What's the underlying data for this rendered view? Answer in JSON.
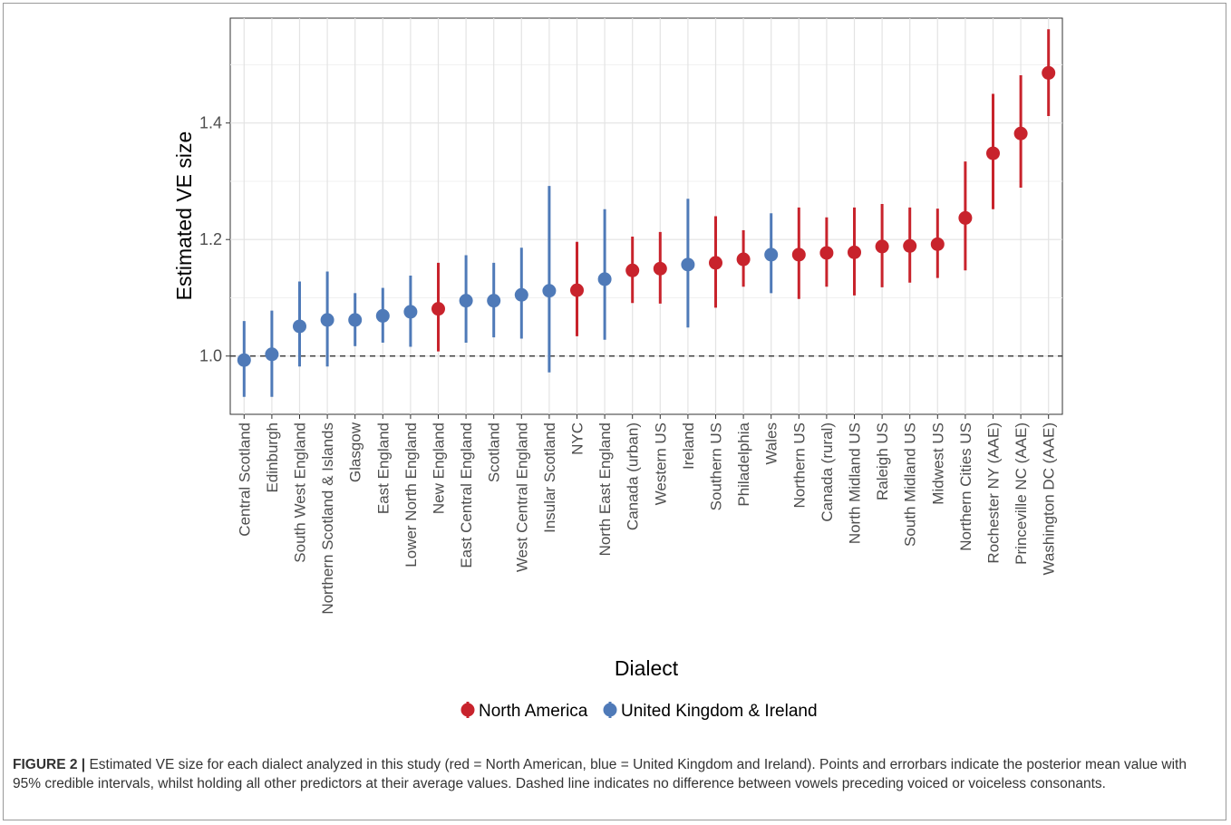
{
  "chart_data": {
    "type": "scatter",
    "xlabel": "Dialect",
    "ylabel": "Estimated VE size",
    "ylim": [
      0.9,
      1.58
    ],
    "yticks": [
      1.0,
      1.2,
      1.4
    ],
    "reference_line": 1.0,
    "grid": true,
    "legend_position": "bottom",
    "legend": [
      {
        "name": "North America",
        "color": "#c8232c"
      },
      {
        "name": "United Kingdom & Ireland",
        "color": "#4f7ab8"
      }
    ],
    "points": [
      {
        "dialect": "Central Scotland",
        "group": 1,
        "mean": 0.993,
        "lower": 0.93,
        "upper": 1.06
      },
      {
        "dialect": "Edinburgh",
        "group": 1,
        "mean": 1.003,
        "lower": 0.93,
        "upper": 1.078
      },
      {
        "dialect": "South West England",
        "group": 1,
        "mean": 1.051,
        "lower": 0.982,
        "upper": 1.128
      },
      {
        "dialect": "Northern Scotland & Islands",
        "group": 1,
        "mean": 1.062,
        "lower": 0.982,
        "upper": 1.145
      },
      {
        "dialect": "Glasgow",
        "group": 1,
        "mean": 1.062,
        "lower": 1.017,
        "upper": 1.108
      },
      {
        "dialect": "East England",
        "group": 1,
        "mean": 1.069,
        "lower": 1.023,
        "upper": 1.117
      },
      {
        "dialect": "Lower North England",
        "group": 1,
        "mean": 1.076,
        "lower": 1.016,
        "upper": 1.138
      },
      {
        "dialect": "New England",
        "group": 0,
        "mean": 1.081,
        "lower": 1.008,
        "upper": 1.16
      },
      {
        "dialect": "East Central England",
        "group": 1,
        "mean": 1.095,
        "lower": 1.023,
        "upper": 1.173
      },
      {
        "dialect": "Scotland",
        "group": 1,
        "mean": 1.095,
        "lower": 1.032,
        "upper": 1.16
      },
      {
        "dialect": "West Central England",
        "group": 1,
        "mean": 1.105,
        "lower": 1.03,
        "upper": 1.186
      },
      {
        "dialect": "Insular Scotland",
        "group": 1,
        "mean": 1.112,
        "lower": 0.972,
        "upper": 1.292
      },
      {
        "dialect": "NYC",
        "group": 0,
        "mean": 1.113,
        "lower": 1.034,
        "upper": 1.196
      },
      {
        "dialect": "North East England",
        "group": 1,
        "mean": 1.132,
        "lower": 1.028,
        "upper": 1.252
      },
      {
        "dialect": "Canada (urban)",
        "group": 0,
        "mean": 1.147,
        "lower": 1.091,
        "upper": 1.205
      },
      {
        "dialect": "Western US",
        "group": 0,
        "mean": 1.15,
        "lower": 1.09,
        "upper": 1.213
      },
      {
        "dialect": "Ireland",
        "group": 1,
        "mean": 1.157,
        "lower": 1.049,
        "upper": 1.27
      },
      {
        "dialect": "Southern US",
        "group": 0,
        "mean": 1.16,
        "lower": 1.083,
        "upper": 1.24
      },
      {
        "dialect": "Philadelphia",
        "group": 0,
        "mean": 1.166,
        "lower": 1.119,
        "upper": 1.216
      },
      {
        "dialect": "Wales",
        "group": 1,
        "mean": 1.174,
        "lower": 1.108,
        "upper": 1.245
      },
      {
        "dialect": "Northern US",
        "group": 0,
        "mean": 1.174,
        "lower": 1.098,
        "upper": 1.255
      },
      {
        "dialect": "Canada (rural)",
        "group": 0,
        "mean": 1.177,
        "lower": 1.119,
        "upper": 1.238
      },
      {
        "dialect": "North Midland US",
        "group": 0,
        "mean": 1.178,
        "lower": 1.104,
        "upper": 1.255
      },
      {
        "dialect": "Raleigh US",
        "group": 0,
        "mean": 1.188,
        "lower": 1.118,
        "upper": 1.261
      },
      {
        "dialect": "South Midland US",
        "group": 0,
        "mean": 1.189,
        "lower": 1.126,
        "upper": 1.255
      },
      {
        "dialect": "Midwest US",
        "group": 0,
        "mean": 1.192,
        "lower": 1.134,
        "upper": 1.253
      },
      {
        "dialect": "Northern Cities US",
        "group": 0,
        "mean": 1.237,
        "lower": 1.147,
        "upper": 1.334
      },
      {
        "dialect": "Rochester NY (AAE)",
        "group": 0,
        "mean": 1.348,
        "lower": 1.252,
        "upper": 1.45
      },
      {
        "dialect": "Princeville NC (AAE)",
        "group": 0,
        "mean": 1.382,
        "lower": 1.289,
        "upper": 1.482
      },
      {
        "dialect": "Washington DC (AAE)",
        "group": 0,
        "mean": 1.486,
        "lower": 1.412,
        "upper": 1.561
      }
    ]
  },
  "caption": {
    "label": "FIGURE 2 |",
    "text": "Estimated VE size for each dialect analyzed in this study (red = North American, blue = United Kingdom and Ireland). Points and errorbars indicate the posterior mean value with 95% credible intervals, whilst holding all other predictors at their average values. Dashed line indicates no difference between vowels preceding voiced or voiceless consonants."
  }
}
